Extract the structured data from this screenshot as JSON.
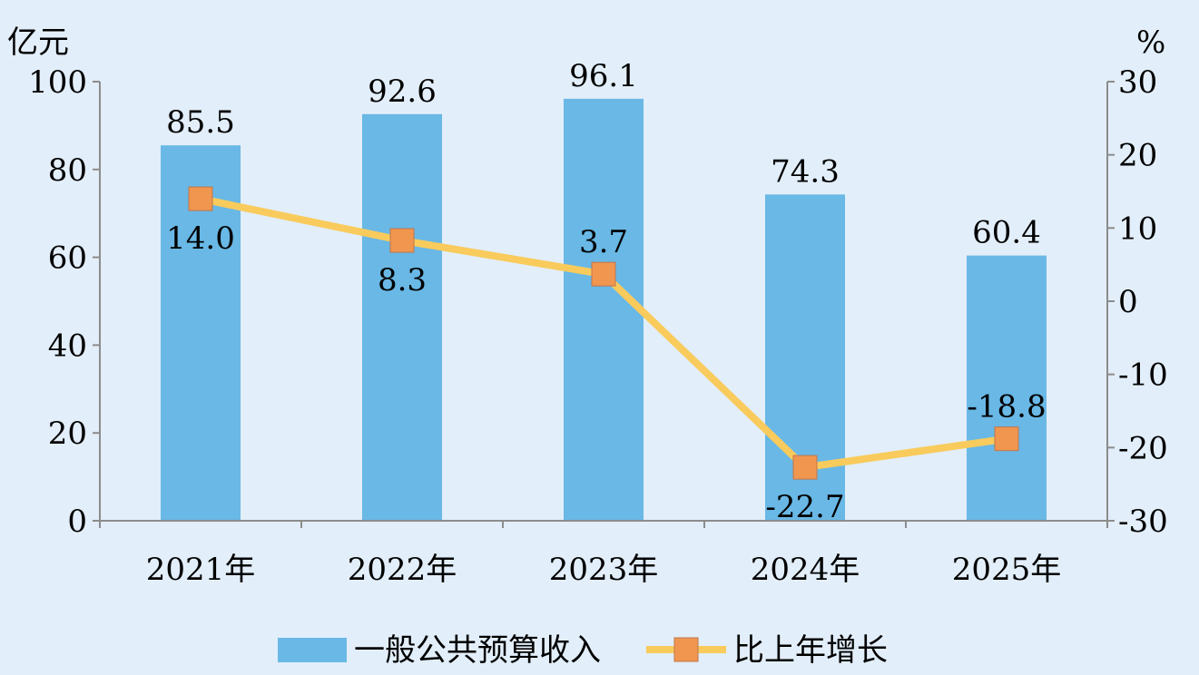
{
  "chart_data": {
    "type": "bar+line",
    "categories": [
      "2021年",
      "2022年",
      "2023年",
      "2024年",
      "2025年"
    ],
    "series": [
      {
        "name": "一般公共预算收入",
        "type": "bar",
        "axis": "left",
        "values": [
          85.5,
          92.6,
          96.1,
          74.3,
          60.4
        ],
        "labels": [
          "85.5",
          "92.6",
          "96.1",
          "74.3",
          "60.4"
        ]
      },
      {
        "name": "比上年增长",
        "type": "line",
        "axis": "right",
        "values": [
          14.0,
          8.3,
          3.7,
          -22.7,
          -18.8
        ],
        "labels": [
          "14.0",
          "8.3",
          "3.7",
          "-22.7",
          "-18.8"
        ]
      }
    ],
    "left_axis": {
      "unit": "亿元",
      "range": [
        0,
        100
      ],
      "ticks": [
        "0",
        "20",
        "40",
        "60",
        "80",
        "100"
      ]
    },
    "right_axis": {
      "unit": "%",
      "range": [
        -30,
        30
      ],
      "ticks": [
        "-30",
        "-20",
        "-10",
        "0",
        "10",
        "20",
        "30"
      ]
    },
    "grid": false,
    "legend": "bottom",
    "colors": {
      "bar": "#69b8e6",
      "line": "#f9cb5c",
      "marker": "#f0964f",
      "axis": "#8c8c8c",
      "background": "#e2eef9"
    }
  }
}
